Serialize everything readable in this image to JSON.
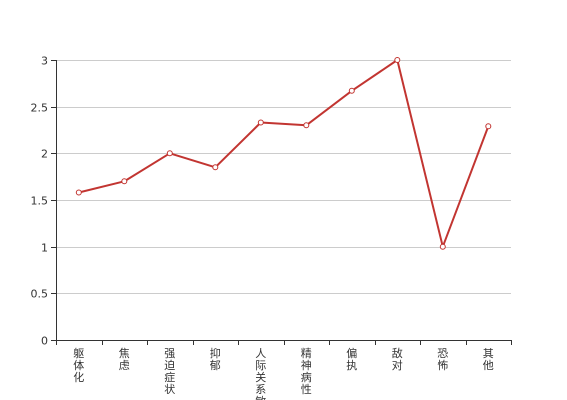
{
  "chart_data": {
    "type": "line",
    "categories": [
      "躯体化",
      "焦虑",
      "强迫症状",
      "抑郁",
      "人际关系敏感",
      "精神病性",
      "偏执",
      "敌对",
      "恐怖",
      "其他"
    ],
    "series": [
      {
        "values": [
          1.58,
          1.7,
          2.0,
          1.85,
          2.33,
          2.3,
          2.67,
          3.0,
          1.0,
          2.29
        ]
      }
    ],
    "yticks": [
      0,
      0.5,
      1,
      1.5,
      2,
      2.5,
      3
    ],
    "ytick_labels": [
      "0",
      "0.5",
      "1",
      "1.5",
      "2",
      "2.5",
      "3"
    ],
    "ylim": [
      0,
      3
    ],
    "grid": "horizontal",
    "title": "",
    "xlabel": "",
    "ylabel": "",
    "colors": {
      "line": "#c23531",
      "grid": "#cccccc",
      "axis": "#333333",
      "marker_fill": "#ffffff"
    }
  }
}
